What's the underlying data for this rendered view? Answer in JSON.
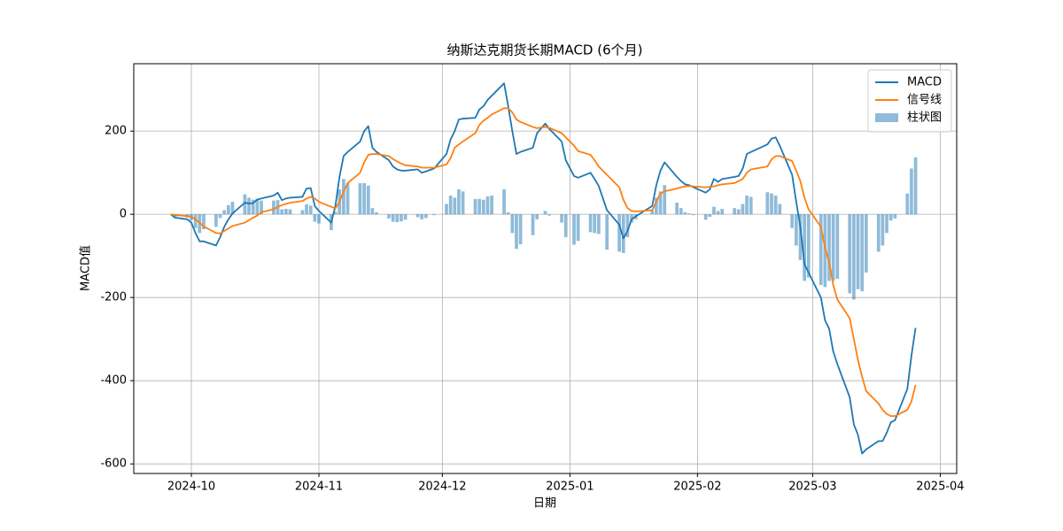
{
  "chart_data": {
    "type": "macd",
    "title": "纳斯达克期货长期MACD (6个月)",
    "xlabel": "日期",
    "ylabel": "MACD值",
    "x": [
      "2024-09-26",
      "2024-09-27",
      "2024-09-30",
      "2024-10-01",
      "2024-10-02",
      "2024-10-03",
      "2024-10-04",
      "2024-10-07",
      "2024-10-08",
      "2024-10-09",
      "2024-10-10",
      "2024-10-11",
      "2024-10-14",
      "2024-10-15",
      "2024-10-16",
      "2024-10-17",
      "2024-10-18",
      "2024-10-21",
      "2024-10-22",
      "2024-10-23",
      "2024-10-24",
      "2024-10-25",
      "2024-10-28",
      "2024-10-29",
      "2024-10-30",
      "2024-10-31",
      "2024-11-01",
      "2024-11-04",
      "2024-11-05",
      "2024-11-06",
      "2024-11-07",
      "2024-11-08",
      "2024-11-11",
      "2024-11-12",
      "2024-11-13",
      "2024-11-14",
      "2024-11-15",
      "2024-11-18",
      "2024-11-19",
      "2024-11-20",
      "2024-11-21",
      "2024-11-22",
      "2024-11-25",
      "2024-11-26",
      "2024-11-27",
      "2024-11-29",
      "2024-12-02",
      "2024-12-03",
      "2024-12-04",
      "2024-12-05",
      "2024-12-06",
      "2024-12-09",
      "2024-12-10",
      "2024-12-11",
      "2024-12-12",
      "2024-12-13",
      "2024-12-16",
      "2024-12-17",
      "2024-12-18",
      "2024-12-19",
      "2024-12-20",
      "2024-12-23",
      "2024-12-24",
      "2024-12-26",
      "2024-12-27",
      "2024-12-30",
      "2024-12-31",
      "2025-01-02",
      "2025-01-03",
      "2025-01-06",
      "2025-01-07",
      "2025-01-08",
      "2025-01-10",
      "2025-01-13",
      "2025-01-14",
      "2025-01-15",
      "2025-01-16",
      "2025-01-17",
      "2025-01-21",
      "2025-01-22",
      "2025-01-23",
      "2025-01-24",
      "2025-01-27",
      "2025-01-28",
      "2025-01-29",
      "2025-01-30",
      "2025-01-31",
      "2025-02-03",
      "2025-02-04",
      "2025-02-05",
      "2025-02-06",
      "2025-02-07",
      "2025-02-10",
      "2025-02-11",
      "2025-02-12",
      "2025-02-13",
      "2025-02-14",
      "2025-02-18",
      "2025-02-19",
      "2025-02-20",
      "2025-02-21",
      "2025-02-24",
      "2025-02-25",
      "2025-02-26",
      "2025-02-27",
      "2025-02-28",
      "2025-03-03",
      "2025-03-04",
      "2025-03-05",
      "2025-03-06",
      "2025-03-07",
      "2025-03-10",
      "2025-03-11",
      "2025-03-12",
      "2025-03-13",
      "2025-03-14",
      "2025-03-17",
      "2025-03-18",
      "2025-03-19",
      "2025-03-20",
      "2025-03-21",
      "2025-03-24",
      "2025-03-25",
      "2025-03-26"
    ],
    "series": [
      {
        "name": "MACD",
        "color": "#1f77b4",
        "type": "line",
        "values": [
          0,
          -8,
          -12,
          -20,
          -45,
          -65,
          -65,
          -75,
          -55,
          -30,
          -12,
          2,
          28,
          26,
          27,
          35,
          38,
          45,
          52,
          34,
          38,
          40,
          42,
          62,
          63,
          20,
          8,
          -20,
          20,
          90,
          140,
          150,
          175,
          200,
          212,
          160,
          150,
          130,
          115,
          108,
          105,
          105,
          108,
          100,
          103,
          110,
          145,
          180,
          200,
          228,
          230,
          232,
          252,
          260,
          275,
          285,
          315,
          260,
          200,
          145,
          150,
          160,
          195,
          218,
          205,
          175,
          130,
          92,
          88,
          100,
          85,
          68,
          10,
          -25,
          -58,
          -40,
          -12,
          -5,
          20,
          70,
          105,
          125,
          90,
          80,
          72,
          70,
          65,
          52,
          60,
          85,
          78,
          85,
          90,
          92,
          110,
          145,
          150,
          168,
          182,
          185,
          165,
          95,
          30,
          -30,
          -120,
          -140,
          -200,
          -255,
          -275,
          -330,
          -360,
          -440,
          -505,
          -530,
          -575,
          -565,
          -545,
          -545,
          -525,
          -500,
          -495,
          -420,
          -340,
          -273
        ]
      },
      {
        "name": "信号线",
        "color": "#ff7f0e",
        "type": "line",
        "values": [
          0,
          -2,
          -4,
          -6,
          -12,
          -20,
          -29,
          -45,
          -46,
          -40,
          -34,
          -28,
          -20,
          -14,
          -8,
          -3,
          5,
          12,
          18,
          22,
          25,
          28,
          32,
          38,
          42,
          38,
          30,
          18,
          14,
          30,
          55,
          75,
          100,
          125,
          143,
          145,
          145,
          140,
          133,
          127,
          122,
          118,
          115,
          112,
          112,
          112,
          120,
          135,
          160,
          168,
          175,
          195,
          215,
          225,
          232,
          240,
          255,
          255,
          245,
          228,
          222,
          210,
          207,
          210,
          208,
          195,
          185,
          165,
          152,
          143,
          130,
          115,
          95,
          65,
          35,
          15,
          8,
          7,
          10,
          30,
          50,
          55,
          62,
          65,
          67,
          68,
          67,
          65,
          66,
          67,
          70,
          72,
          75,
          80,
          85,
          100,
          108,
          115,
          132,
          140,
          140,
          128,
          105,
          80,
          40,
          12,
          -30,
          -80,
          -115,
          -170,
          -205,
          -250,
          -300,
          -350,
          -390,
          -425,
          -455,
          -470,
          -480,
          -485,
          -485,
          -470,
          -450,
          -410
        ]
      },
      {
        "name": "柱状图",
        "color": "#1f77b4",
        "type": "bar",
        "opacity": 0.5,
        "values": [
          0,
          -6,
          -8,
          -14,
          -33,
          -45,
          -36,
          -30,
          -9,
          10,
          22,
          30,
          48,
          40,
          35,
          38,
          33,
          33,
          34,
          12,
          13,
          12,
          10,
          24,
          21,
          -18,
          -22,
          -38,
          6,
          60,
          85,
          75,
          75,
          75,
          69,
          15,
          5,
          -10,
          -18,
          -19,
          -17,
          -13,
          -7,
          -12,
          -9,
          -2,
          25,
          45,
          40,
          60,
          55,
          37,
          37,
          35,
          43,
          45,
          60,
          5,
          -45,
          -83,
          -72,
          -50,
          -12,
          8,
          -3,
          -20,
          -55,
          -73,
          -64,
          -43,
          -45,
          -47,
          -85,
          -90,
          -93,
          -55,
          -20,
          -12,
          10,
          40,
          55,
          70,
          28,
          15,
          5,
          2,
          -2,
          -13,
          -6,
          18,
          8,
          13,
          15,
          12,
          25,
          45,
          42,
          53,
          50,
          45,
          25,
          -33,
          -75,
          -110,
          -160,
          -152,
          -170,
          -175,
          -160,
          -160,
          -155,
          -190,
          -205,
          -180,
          -185,
          -140,
          -90,
          -75,
          -45,
          -15,
          -10,
          50,
          110,
          137
        ]
      }
    ],
    "xlim": [
      "2024-09-17",
      "2025-04-05"
    ],
    "xticks": [
      "2024-10",
      "2024-11",
      "2024-12",
      "2025-01",
      "2025-02",
      "2025-03",
      "2025-04"
    ],
    "ylim": [
      -623,
      362
    ],
    "yticks": [
      -600,
      -400,
      -200,
      0,
      200
    ],
    "grid": true,
    "legend": "upper right"
  }
}
